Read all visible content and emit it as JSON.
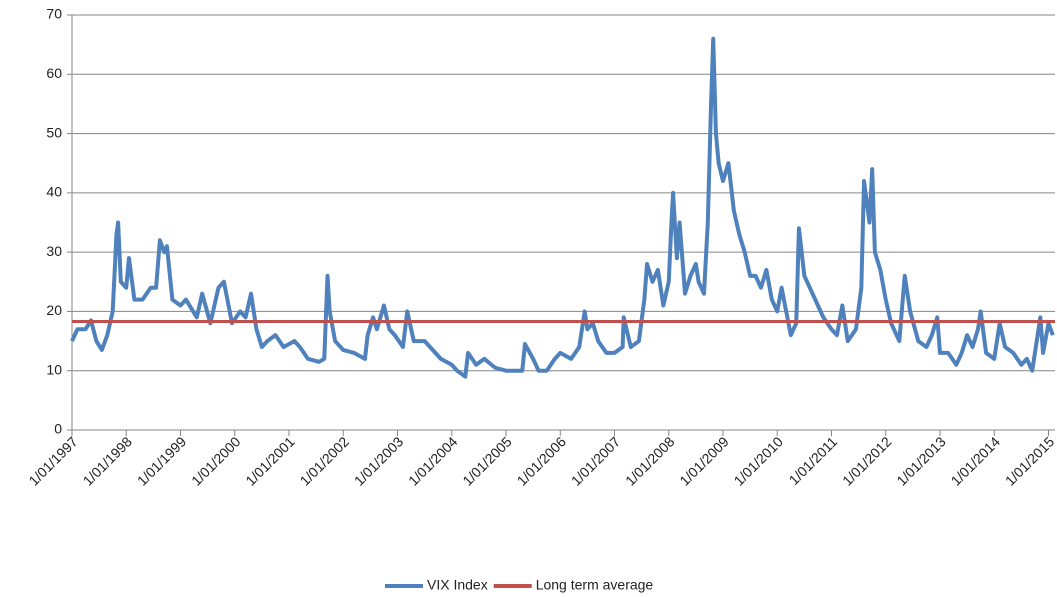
{
  "chart_data": {
    "type": "line",
    "xlim": [
      1997,
      2015.12
    ],
    "xticks": [
      {
        "value": 1997,
        "label": "1/01/1997"
      },
      {
        "value": 1998,
        "label": "1/01/1998"
      },
      {
        "value": 1999,
        "label": "1/01/1999"
      },
      {
        "value": 2000,
        "label": "1/01/2000"
      },
      {
        "value": 2001,
        "label": "1/01/2001"
      },
      {
        "value": 2002,
        "label": "1/01/2002"
      },
      {
        "value": 2003,
        "label": "1/01/2003"
      },
      {
        "value": 2004,
        "label": "1/01/2004"
      },
      {
        "value": 2005,
        "label": "1/01/2005"
      },
      {
        "value": 2006,
        "label": "1/01/2006"
      },
      {
        "value": 2007,
        "label": "1/01/2007"
      },
      {
        "value": 2008,
        "label": "1/01/2008"
      },
      {
        "value": 2009,
        "label": "1/01/2009"
      },
      {
        "value": 2010,
        "label": "1/01/2010"
      },
      {
        "value": 2011,
        "label": "1/01/2011"
      },
      {
        "value": 2012,
        "label": "1/01/2012"
      },
      {
        "value": 2013,
        "label": "1/01/2013"
      },
      {
        "value": 2014,
        "label": "1/01/2014"
      },
      {
        "value": 2015,
        "label": "1/01/2015"
      }
    ],
    "ylim": [
      0,
      70
    ],
    "yticks": [
      0,
      10,
      20,
      30,
      40,
      50,
      60,
      70
    ],
    "grid": true,
    "legend": "bottom",
    "series": [
      {
        "name": "VIX Index",
        "color": "#4f81bd",
        "x": [
          1997.0,
          1997.1,
          1997.25,
          1997.35,
          1997.45,
          1997.55,
          1997.65,
          1997.75,
          1997.82,
          1997.85,
          1997.9,
          1998.0,
          1998.05,
          1998.15,
          1998.3,
          1998.45,
          1998.55,
          1998.62,
          1998.7,
          1998.75,
          1998.85,
          1999.0,
          1999.1,
          1999.3,
          1999.4,
          1999.55,
          1999.7,
          1999.8,
          1999.95,
          2000.1,
          2000.2,
          2000.3,
          2000.4,
          2000.5,
          2000.6,
          2000.75,
          2000.9,
          2001.1,
          2001.2,
          2001.35,
          2001.55,
          2001.65,
          2001.71,
          2001.75,
          2001.85,
          2002.0,
          2002.2,
          2002.4,
          2002.45,
          2002.55,
          2002.62,
          2002.75,
          2002.85,
          2002.95,
          2003.1,
          2003.18,
          2003.3,
          2003.5,
          2003.6,
          2003.8,
          2004.0,
          2004.1,
          2004.25,
          2004.3,
          2004.45,
          2004.6,
          2004.8,
          2005.0,
          2005.15,
          2005.3,
          2005.35,
          2005.5,
          2005.6,
          2005.75,
          2005.9,
          2006.0,
          2006.2,
          2006.35,
          2006.45,
          2006.5,
          2006.6,
          2006.7,
          2006.85,
          2007.0,
          2007.15,
          2007.17,
          2007.3,
          2007.45,
          2007.55,
          2007.6,
          2007.7,
          2007.8,
          2007.9,
          2008.0,
          2008.05,
          2008.08,
          2008.15,
          2008.2,
          2008.3,
          2008.4,
          2008.5,
          2008.55,
          2008.65,
          2008.72,
          2008.78,
          2008.82,
          2008.87,
          2008.92,
          2009.0,
          2009.1,
          2009.2,
          2009.3,
          2009.4,
          2009.5,
          2009.6,
          2009.7,
          2009.8,
          2009.9,
          2010.0,
          2010.08,
          2010.25,
          2010.35,
          2010.4,
          2010.5,
          2010.6,
          2010.75,
          2010.85,
          2011.0,
          2011.1,
          2011.2,
          2011.3,
          2011.45,
          2011.55,
          2011.6,
          2011.7,
          2011.75,
          2011.8,
          2011.9,
          2012.0,
          2012.1,
          2012.25,
          2012.35,
          2012.45,
          2012.6,
          2012.75,
          2012.85,
          2012.95,
          2013.0,
          2013.15,
          2013.3,
          2013.4,
          2013.5,
          2013.6,
          2013.7,
          2013.75,
          2013.85,
          2014.0,
          2014.1,
          2014.2,
          2014.35,
          2014.5,
          2014.6,
          2014.7,
          2014.8,
          2014.85,
          2014.9,
          2015.0,
          2015.08
        ],
        "values": [
          15,
          17,
          17,
          18.5,
          15,
          13.5,
          16,
          20,
          33,
          35,
          25,
          24,
          29,
          22,
          22,
          24,
          24,
          32,
          30,
          31,
          22,
          21,
          22,
          19,
          23,
          18,
          24,
          25,
          18,
          20,
          19,
          23,
          17,
          14,
          15,
          16,
          14,
          15,
          14,
          12,
          11.5,
          12,
          26,
          20,
          15,
          13.5,
          13,
          12,
          16,
          19,
          17,
          21,
          17,
          16,
          14,
          20,
          15,
          15,
          14,
          12,
          11,
          10,
          9,
          13,
          11,
          12,
          10.5,
          10,
          10,
          10,
          14.5,
          12,
          10,
          10,
          12,
          13,
          12,
          14,
          20,
          17,
          18,
          15,
          13,
          13,
          14,
          19,
          14,
          15,
          22,
          28,
          25,
          27,
          21,
          25,
          35,
          40,
          29,
          35,
          23,
          26,
          28,
          25,
          23,
          35,
          55,
          66,
          50,
          45,
          42,
          45,
          37,
          33,
          30,
          26,
          26,
          24,
          27,
          22,
          20,
          24,
          16,
          18,
          34,
          26,
          24,
          21,
          19,
          17,
          16,
          21,
          15,
          17,
          24,
          42,
          35,
          44,
          30,
          27,
          22,
          18,
          15,
          26,
          20,
          15,
          14,
          16,
          19,
          13,
          13,
          11,
          13,
          16,
          14,
          17,
          20,
          13,
          12,
          18,
          14,
          13,
          11,
          12,
          10,
          16,
          19,
          13,
          18,
          16
        ]
      },
      {
        "name": "Long term average",
        "color": "#c0504d",
        "x": [
          1997.0,
          2015.12
        ],
        "values": [
          18.3,
          18.3
        ]
      }
    ]
  }
}
